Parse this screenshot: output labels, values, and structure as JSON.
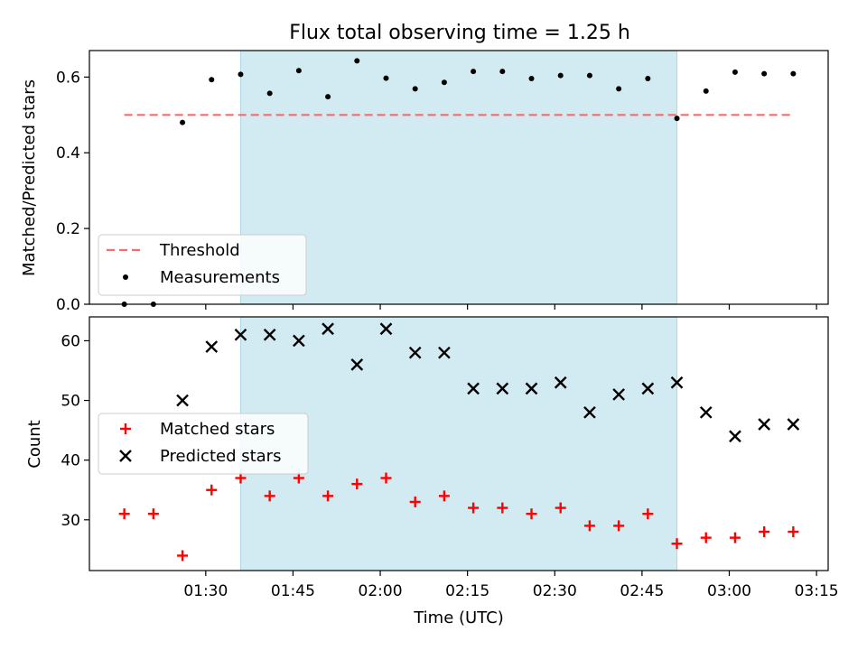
{
  "chart_data": [
    {
      "type": "scatter",
      "title": "Flux total observing time = 1.25 h",
      "ylabel": "Matched/Predicted stars",
      "xlabel": "",
      "ylim": [
        0,
        0.67
      ],
      "yticks": [
        0.0,
        0.2,
        0.4,
        0.6
      ],
      "ytick_labels": [
        "0.0",
        "0.2",
        "0.4",
        "0.6"
      ],
      "threshold": 0.5,
      "shaded_interval": [
        "01:36",
        "02:51"
      ],
      "shade_color": "#add8e6",
      "legend_placement": "lower-left",
      "series": [
        {
          "name": "Threshold",
          "kind": "dashed-line",
          "color": "#f07070",
          "x": [
            "01:16",
            "03:11"
          ],
          "values": [
            0.5,
            0.5
          ]
        },
        {
          "name": "Measurements",
          "kind": "dot",
          "color": "#000000",
          "x": [
            "01:16",
            "01:21",
            "01:26",
            "01:31",
            "01:36",
            "01:41",
            "01:46",
            "01:51",
            "01:56",
            "02:01",
            "02:06",
            "02:11",
            "02:16",
            "02:21",
            "02:26",
            "02:31",
            "02:36",
            "02:41",
            "02:46",
            "02:51",
            "02:56",
            "03:01",
            "03:06",
            "03:11"
          ],
          "values": [
            0.0,
            0.0,
            0.48,
            0.593,
            0.607,
            0.557,
            0.617,
            0.548,
            0.643,
            0.597,
            0.569,
            0.586,
            0.615,
            0.615,
            0.596,
            0.604,
            0.604,
            0.569,
            0.596,
            0.491,
            0.563,
            0.613,
            0.609,
            0.609
          ]
        }
      ]
    },
    {
      "type": "scatter",
      "title": "",
      "ylabel": "Count",
      "xlabel": "Time (UTC)",
      "ylim": [
        21.5,
        64.0
      ],
      "yticks": [
        30,
        40,
        50,
        60
      ],
      "ytick_labels": [
        "30",
        "40",
        "50",
        "60"
      ],
      "xticks": [
        "01:30",
        "01:45",
        "02:00",
        "02:15",
        "02:30",
        "02:45",
        "03:00",
        "03:15"
      ],
      "xlim": [
        "01:10",
        "03:17"
      ],
      "shaded_interval": [
        "01:36",
        "02:51"
      ],
      "shade_color": "#add8e6",
      "legend_placement": "center-left",
      "series": [
        {
          "name": "Matched stars",
          "kind": "plus",
          "color": "#ff0000",
          "x": [
            "01:16",
            "01:21",
            "01:26",
            "01:31",
            "01:36",
            "01:41",
            "01:46",
            "01:51",
            "01:56",
            "02:01",
            "02:06",
            "02:11",
            "02:16",
            "02:21",
            "02:26",
            "02:31",
            "02:36",
            "02:41",
            "02:46",
            "02:51",
            "02:56",
            "03:01",
            "03:06",
            "03:11"
          ],
          "values": [
            31,
            31,
            24,
            35,
            37,
            34,
            37,
            34,
            36,
            37,
            33,
            34,
            32,
            32,
            31,
            32,
            29,
            29,
            31,
            26,
            27,
            27,
            28,
            28
          ]
        },
        {
          "name": "Predicted stars",
          "kind": "x",
          "color": "#000000",
          "x": [
            "01:26",
            "01:31",
            "01:36",
            "01:41",
            "01:46",
            "01:51",
            "01:56",
            "02:01",
            "02:06",
            "02:11",
            "02:16",
            "02:21",
            "02:26",
            "02:31",
            "02:36",
            "02:41",
            "02:46",
            "02:51",
            "02:56",
            "03:01",
            "03:06",
            "03:11"
          ],
          "values": [
            50,
            59,
            61,
            61,
            60,
            62,
            56,
            62,
            58,
            58,
            52,
            52,
            52,
            53,
            48,
            51,
            52,
            53,
            48,
            44,
            46,
            46
          ]
        }
      ]
    }
  ]
}
